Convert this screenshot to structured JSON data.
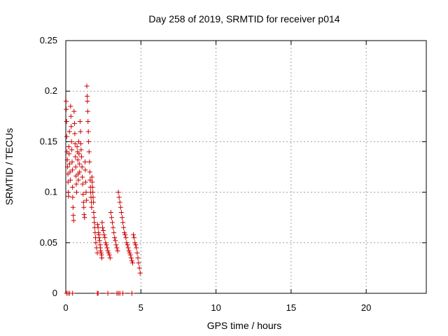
{
  "chart_data": {
    "type": "scatter",
    "title": "Day 258 of 2019, SRMTID for receiver p014",
    "xlabel": "GPS time / hours",
    "ylabel": "SRMTID / TECUs",
    "xlim": [
      0,
      24
    ],
    "ylim": [
      0,
      0.25
    ],
    "xticks": [
      0,
      5,
      10,
      15,
      20
    ],
    "xtick_labels": [
      "0",
      "5",
      "10",
      "15",
      "20"
    ],
    "yticks": [
      0,
      0.05,
      0.1,
      0.15,
      0.2,
      0.25
    ],
    "ytick_labels": [
      "0",
      "0.05",
      "0.1",
      "0.15",
      "0.2",
      "0.25"
    ],
    "grid": true,
    "color": "#cc0000",
    "marker": "plus",
    "series": [
      {
        "name": "SRMTID",
        "points": [
          [
            0.02,
            0.19
          ],
          [
            0.03,
            0.182
          ],
          [
            0.05,
            0.17
          ],
          [
            0.06,
            0.155
          ],
          [
            0.08,
            0.14
          ],
          [
            0.1,
            0.132
          ],
          [
            0.12,
            0.125
          ],
          [
            0.14,
            0.118
          ],
          [
            0.15,
            0.11
          ],
          [
            0.17,
            0.1
          ],
          [
            0.18,
            0.096
          ],
          [
            0.2,
            0.145
          ],
          [
            0.22,
            0.138
          ],
          [
            0.24,
            0.16
          ],
          [
            0.25,
            0.128
          ],
          [
            0.28,
            0.12
          ],
          [
            0.3,
            0.112
          ],
          [
            0.32,
            0.185
          ],
          [
            0.34,
            0.175
          ],
          [
            0.36,
            0.165
          ],
          [
            0.38,
            0.15
          ],
          [
            0.4,
            0.142
          ],
          [
            0.42,
            0.13
          ],
          [
            0.44,
            0.122
          ],
          [
            0.45,
            0.105
          ],
          [
            0.46,
            0.095
          ],
          [
            0.48,
            0.085
          ],
          [
            0.5,
            0.077
          ],
          [
            0.52,
            0.072
          ],
          [
            0.55,
            0.18
          ],
          [
            0.58,
            0.168
          ],
          [
            0.6,
            0.158
          ],
          [
            0.62,
            0.148
          ],
          [
            0.64,
            0.135
          ],
          [
            0.66,
            0.125
          ],
          [
            0.68,
            0.116
          ],
          [
            0.7,
            0.108
          ],
          [
            0.72,
            0.1
          ],
          [
            0.75,
            0.145
          ],
          [
            0.78,
            0.14
          ],
          [
            0.8,
            0.132
          ],
          [
            0.82,
            0.118
          ],
          [
            0.84,
            0.112
          ],
          [
            0.86,
            0.15
          ],
          [
            0.88,
            0.138
          ],
          [
            0.9,
            0.128
          ],
          [
            0.92,
            0.12
          ],
          [
            0.95,
            0.17
          ],
          [
            0.98,
            0.16
          ],
          [
            1.0,
            0.148
          ],
          [
            1.02,
            0.142
          ],
          [
            1.05,
            0.135
          ],
          [
            1.08,
            0.125
          ],
          [
            1.1,
            0.115
          ],
          [
            1.12,
            0.108
          ],
          [
            1.15,
            0.098
          ],
          [
            1.18,
            0.09
          ],
          [
            1.2,
            0.085
          ],
          [
            1.22,
            0.078
          ],
          [
            1.25,
            0.075
          ],
          [
            1.28,
            0.13
          ],
          [
            1.3,
            0.122
          ],
          [
            1.32,
            0.11
          ],
          [
            1.35,
            0.1
          ],
          [
            1.38,
            0.092
          ],
          [
            1.4,
            0.205
          ],
          [
            1.42,
            0.195
          ],
          [
            1.44,
            0.19
          ],
          [
            1.46,
            0.18
          ],
          [
            1.48,
            0.17
          ],
          [
            1.5,
            0.16
          ],
          [
            1.52,
            0.15
          ],
          [
            1.55,
            0.14
          ],
          [
            1.58,
            0.13
          ],
          [
            1.6,
            0.12
          ],
          [
            1.62,
            0.112
          ],
          [
            1.64,
            0.105
          ],
          [
            1.66,
            0.1
          ],
          [
            1.68,
            0.095
          ],
          [
            1.7,
            0.09
          ],
          [
            1.72,
            0.085
          ],
          [
            1.74,
            0.115
          ],
          [
            1.76,
            0.11
          ],
          [
            1.78,
            0.105
          ],
          [
            1.8,
            0.1
          ],
          [
            1.82,
            0.095
          ],
          [
            1.84,
            0.09
          ],
          [
            1.86,
            0.08
          ],
          [
            1.88,
            0.075
          ],
          [
            1.9,
            0.07
          ],
          [
            1.92,
            0.065
          ],
          [
            1.95,
            0.06
          ],
          [
            1.98,
            0.055
          ],
          [
            2.0,
            0.05
          ],
          [
            2.05,
            0.045
          ],
          [
            2.1,
            0.04
          ],
          [
            2.12,
            0.068
          ],
          [
            2.15,
            0.065
          ],
          [
            2.18,
            0.06
          ],
          [
            2.2,
            0.058
          ],
          [
            2.22,
            0.055
          ],
          [
            2.25,
            0.052
          ],
          [
            2.28,
            0.048
          ],
          [
            2.3,
            0.045
          ],
          [
            2.32,
            0.042
          ],
          [
            2.35,
            0.04
          ],
          [
            2.38,
            0.038
          ],
          [
            2.4,
            0.035
          ],
          [
            2.42,
            0.07
          ],
          [
            2.45,
            0.065
          ],
          [
            2.5,
            0.062
          ],
          [
            2.55,
            0.058
          ],
          [
            2.6,
            0.055
          ],
          [
            2.65,
            0.05
          ],
          [
            2.7,
            0.048
          ],
          [
            2.75,
            0.045
          ],
          [
            2.8,
            0.042
          ],
          [
            2.85,
            0.04
          ],
          [
            2.9,
            0.038
          ],
          [
            2.95,
            0.035
          ],
          [
            3.0,
            0.08
          ],
          [
            3.05,
            0.075
          ],
          [
            3.1,
            0.07
          ],
          [
            3.15,
            0.065
          ],
          [
            3.2,
            0.06
          ],
          [
            3.25,
            0.055
          ],
          [
            3.3,
            0.052
          ],
          [
            3.35,
            0.048
          ],
          [
            3.4,
            0.045
          ],
          [
            3.45,
            0.042
          ],
          [
            3.5,
            0.1
          ],
          [
            3.55,
            0.095
          ],
          [
            3.6,
            0.09
          ],
          [
            3.65,
            0.085
          ],
          [
            3.7,
            0.08
          ],
          [
            3.75,
            0.075
          ],
          [
            3.8,
            0.07
          ],
          [
            3.85,
            0.065
          ],
          [
            3.9,
            0.06
          ],
          [
            3.95,
            0.058
          ],
          [
            4.0,
            0.055
          ],
          [
            4.05,
            0.05
          ],
          [
            4.1,
            0.048
          ],
          [
            4.15,
            0.045
          ],
          [
            4.2,
            0.042
          ],
          [
            4.25,
            0.04
          ],
          [
            4.3,
            0.038
          ],
          [
            4.35,
            0.035
          ],
          [
            4.4,
            0.032
          ],
          [
            4.45,
            0.03
          ],
          [
            4.5,
            0.058
          ],
          [
            4.55,
            0.055
          ],
          [
            4.6,
            0.05
          ],
          [
            4.65,
            0.048
          ],
          [
            4.7,
            0.045
          ],
          [
            4.75,
            0.04
          ],
          [
            4.8,
            0.035
          ],
          [
            4.85,
            0.03
          ],
          [
            4.9,
            0.025
          ],
          [
            4.95,
            0.02
          ],
          [
            0.05,
            0.0
          ],
          [
            0.15,
            0.0
          ],
          [
            0.25,
            0.0
          ],
          [
            0.45,
            0.0
          ],
          [
            2.1,
            0.0
          ],
          [
            2.15,
            0.0
          ],
          [
            2.8,
            0.0
          ],
          [
            3.4,
            0.0
          ],
          [
            3.5,
            0.0
          ],
          [
            3.6,
            0.0
          ],
          [
            3.8,
            0.0
          ],
          [
            4.4,
            0.0
          ]
        ]
      }
    ]
  }
}
